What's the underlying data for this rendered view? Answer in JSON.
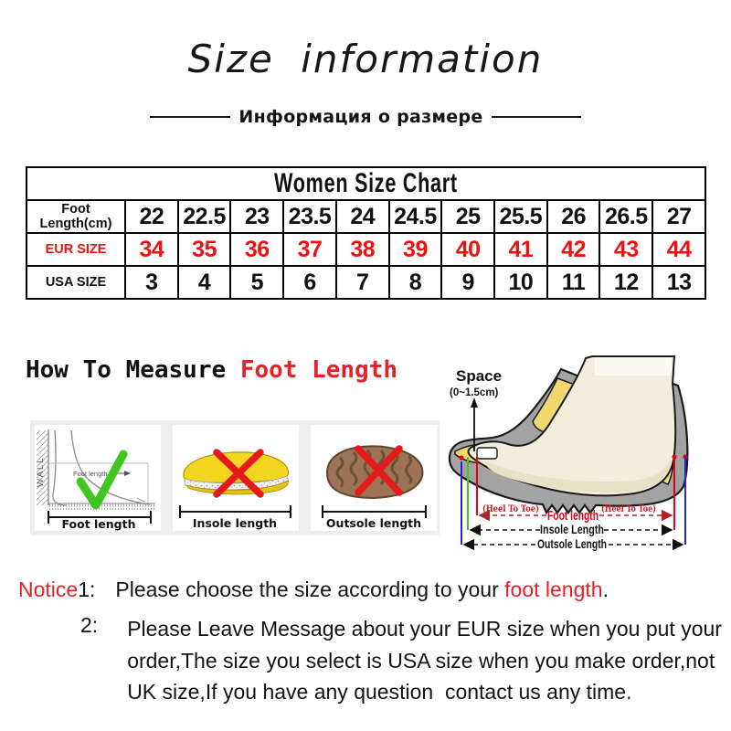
{
  "header": {
    "title": "Size information",
    "subtitle": "Информация о размере"
  },
  "size_table": {
    "title": "Women Size Chart",
    "rows": [
      {
        "label": "Foot Length(cm)",
        "color": "#111111",
        "values": [
          "22",
          "22.5",
          "23",
          "23.5",
          "24",
          "24.5",
          "25",
          "25.5",
          "26",
          "26.5",
          "27"
        ]
      },
      {
        "label": "EUR SIZE",
        "color": "#ee1111",
        "values": [
          "34",
          "35",
          "36",
          "37",
          "38",
          "39",
          "40",
          "41",
          "42",
          "43",
          "44"
        ]
      },
      {
        "label": "USA SIZE",
        "color": "#111111",
        "values": [
          "3",
          "4",
          "5",
          "6",
          "7",
          "8",
          "9",
          "10",
          "11",
          "12",
          "13"
        ]
      }
    ]
  },
  "measure": {
    "heading_black": "How To Measure ",
    "heading_red": "Foot Length",
    "boxes": [
      {
        "caption": "Foot length",
        "wall_label": "WALL",
        "inner_label": "Foot length",
        "mark": "check"
      },
      {
        "caption": "Insole length",
        "mark": "cross"
      },
      {
        "caption": "Outsole length",
        "mark": "cross"
      }
    ]
  },
  "diagram": {
    "space_label": "Space",
    "space_range": "(0~1.5cm)",
    "heel_to_toe_left": "(Heel To Toe)",
    "heel_to_toe_right": "(Heel To Toe)",
    "foot_length_label": "Foot length",
    "insole_label": "Insole Length",
    "outsole_label": "Outsole Length"
  },
  "notice": {
    "label": "Notice",
    "item1": {
      "no": "1:",
      "before": "Please choose the size according to your ",
      "red": "foot length",
      "after": "."
    },
    "item2": {
      "no": "2:",
      "lines": [
        "Please Leave Message about your EUR size when you put your",
        "order,The size you select is USA size when you make order,not",
        "UK size,If you have any question  contact us any time."
      ]
    }
  },
  "colors": {
    "red": "#e62129",
    "green": "#41c621",
    "blue": "#2424d8",
    "shoe_gray": "#a3a3a3",
    "foot_cream": "#f3eedb",
    "liner_yellow": "#f1d76e",
    "insole_yellow": "#f2d620",
    "outsole_brown": "#9c7354"
  }
}
